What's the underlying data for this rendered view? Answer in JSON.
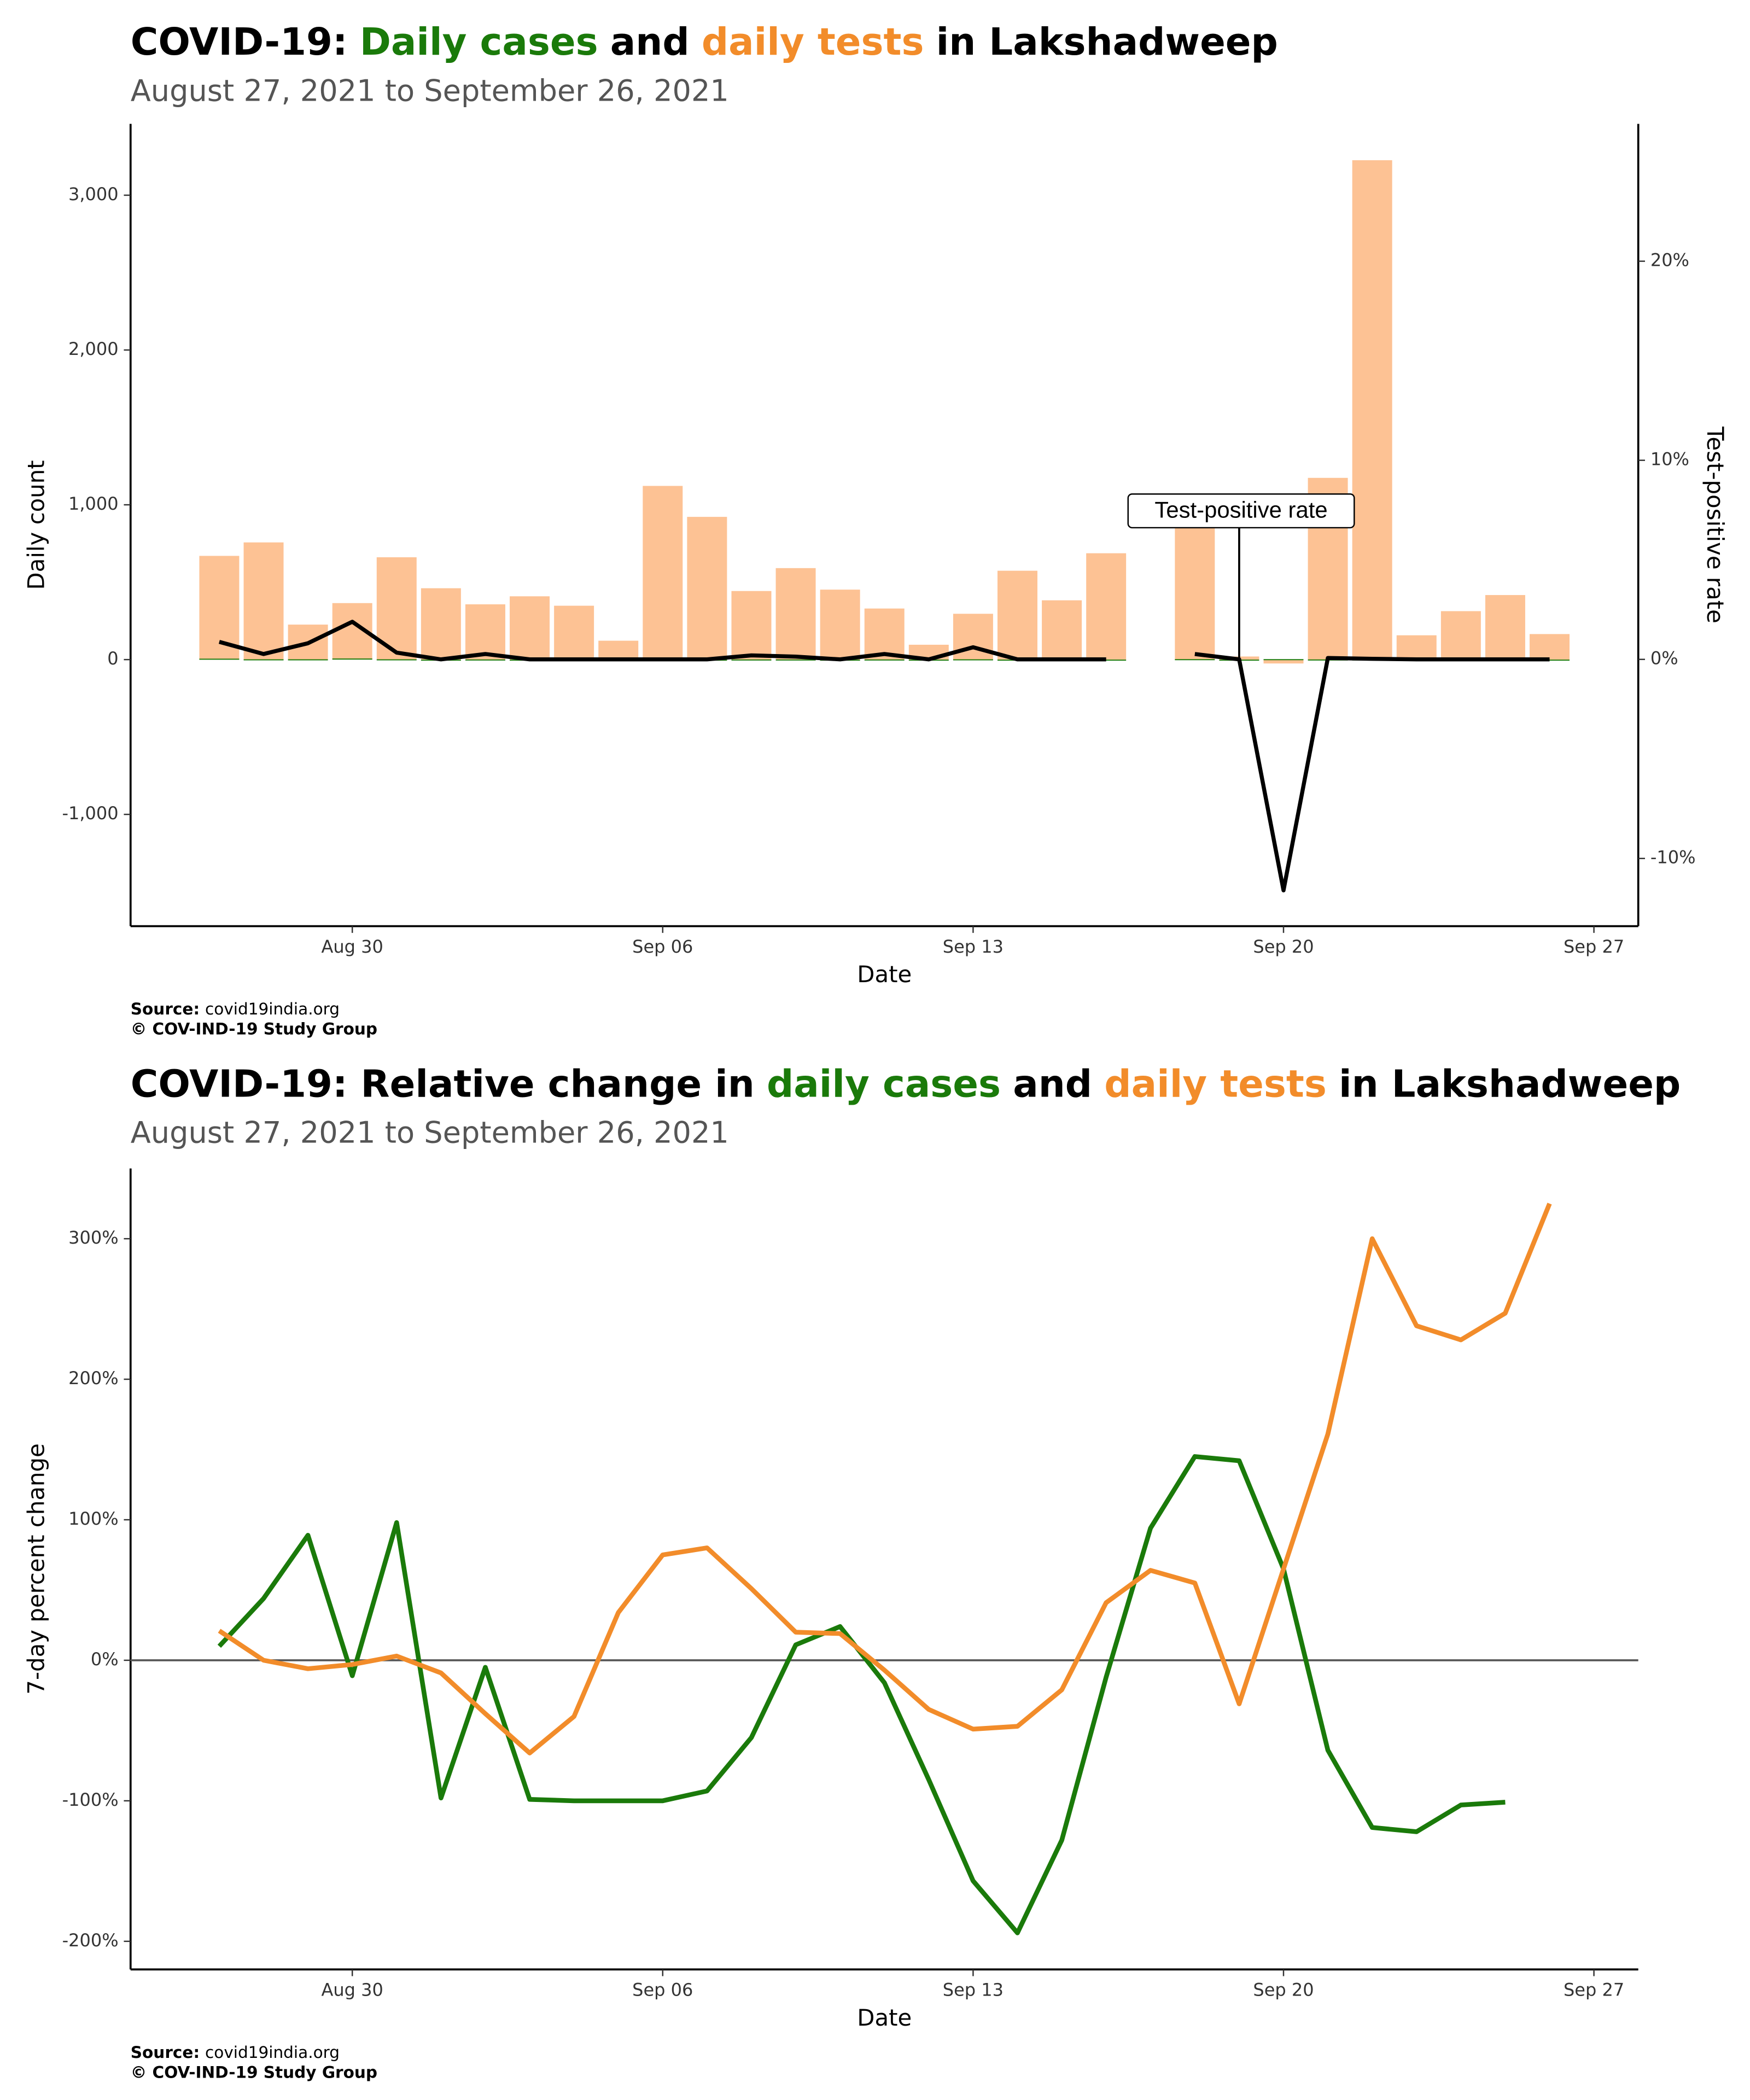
{
  "chart_data": [
    {
      "type": "bar",
      "title": [
        "COVID-19:",
        "Daily cases",
        "and",
        "daily tests",
        "in Lakshadweep"
      ],
      "title_colors": [
        "#000000",
        "#1a7a0a",
        "#000000",
        "#f28c2a",
        "#000000"
      ],
      "subtitle": "August 27, 2021 to September 26, 2021",
      "x_label": "Date",
      "y_label": "Daily count",
      "y2_label": "Test-positive rate",
      "annotation": "Test-positive rate",
      "source_label": "Source:",
      "source": "covid19india.org",
      "credit": "© COV-IND-19 Study Group",
      "x": [
        "Aug 27",
        "Aug 28",
        "Aug 29",
        "Aug 30",
        "Aug 31",
        "Sep 01",
        "Sep 02",
        "Sep 03",
        "Sep 04",
        "Sep 05",
        "Sep 06",
        "Sep 07",
        "Sep 08",
        "Sep 09",
        "Sep 10",
        "Sep 11",
        "Sep 12",
        "Sep 13",
        "Sep 14",
        "Sep 15",
        "Sep 16",
        "Sep 17",
        "Sep 18",
        "Sep 19",
        "Sep 20",
        "Sep 21",
        "Sep 22",
        "Sep 23",
        "Sep 24",
        "Sep 25",
        "Sep 26"
      ],
      "xlim": [
        "Aug 25",
        "Sep 28"
      ],
      "xticks": [
        "Aug 30",
        "Sep 06",
        "Sep 13",
        "Sep 20",
        "Sep 27"
      ],
      "ylim": [
        -1722,
        3461
      ],
      "yticks": [
        {
          "value": -1000,
          "label": "-1,000"
        },
        0,
        {
          "value": 1000,
          "label": "1,000"
        },
        {
          "value": 2000,
          "label": "2,000"
        },
        {
          "value": 3000,
          "label": "3,000"
        }
      ],
      "y2lim": [
        -13.4,
        26.9
      ],
      "y2ticks": [
        {
          "value": -10,
          "label": "-10%"
        },
        {
          "value": 0,
          "label": "0%"
        },
        {
          "value": 10,
          "label": "10%"
        },
        {
          "value": 20,
          "label": "20%"
        }
      ],
      "series": [
        {
          "type": "bar",
          "color": "#fdc294",
          "values": [
            670,
            757,
            226,
            365,
            661,
            461,
            357,
            409,
            348,
            122,
            1122,
            922,
            443,
            591,
            452,
            330,
            96,
            296,
            574,
            383,
            687,
            null,
            1000,
            20,
            -25,
            1174,
            3226,
            157,
            313,
            417,
            165
          ]
        },
        {
          "type": "bar",
          "color": "#1a7a0a",
          "values": [
            6,
            2,
            2,
            7,
            2,
            0,
            1,
            0,
            0,
            0,
            0,
            0,
            1,
            1,
            0,
            1,
            0,
            2,
            0,
            0,
            0,
            null,
            3,
            0,
            3,
            1,
            1,
            0,
            0,
            0,
            0
          ]
        },
        {
          "type": "line",
          "axis": "y2",
          "color": "#000000",
          "values": [
            0.88,
            0.27,
            0.81,
            1.89,
            0.34,
            0,
            0.27,
            0,
            0,
            0,
            0,
            0,
            0.2,
            0.14,
            0,
            0.27,
            0,
            0.61,
            0,
            0,
            0,
            null,
            0.27,
            0,
            -11.6,
            0.07,
            0.03,
            0,
            0,
            0,
            0
          ]
        }
      ]
    },
    {
      "type": "line",
      "title": [
        "COVID-19: Relative change in",
        "daily cases",
        "and",
        "daily tests",
        "in Lakshadweep"
      ],
      "title_colors": [
        "#000000",
        "#1a7a0a",
        "#000000",
        "#f28c2a",
        "#000000"
      ],
      "subtitle": "August 27, 2021 to September 26, 2021",
      "x_label": "Date",
      "y_label": "7-day percent change",
      "source_label": "Source:",
      "source": "covid19india.org",
      "credit": "© COV-IND-19 Study Group",
      "x": [
        "Aug 27",
        "Aug 28",
        "Aug 29",
        "Aug 30",
        "Aug 31",
        "Sep 01",
        "Sep 02",
        "Sep 03",
        "Sep 04",
        "Sep 05",
        "Sep 06",
        "Sep 07",
        "Sep 08",
        "Sep 09",
        "Sep 10",
        "Sep 11",
        "Sep 12",
        "Sep 13",
        "Sep 14",
        "Sep 15",
        "Sep 16",
        "Sep 17",
        "Sep 18",
        "Sep 19",
        "Sep 20",
        "Sep 21",
        "Sep 22",
        "Sep 23",
        "Sep 24",
        "Sep 25",
        "Sep 26"
      ],
      "xlim": [
        "Aug 25",
        "Sep 28"
      ],
      "xticks": [
        "Aug 30",
        "Sep 06",
        "Sep 13",
        "Sep 20",
        "Sep 27"
      ],
      "ylim": [
        -220,
        350
      ],
      "yticks": [
        {
          "value": -200,
          "label": "-200%"
        },
        {
          "value": -100,
          "label": "-100%"
        },
        {
          "value": 0,
          "label": "0%"
        },
        {
          "value": 100,
          "label": "100%"
        },
        {
          "value": 200,
          "label": "200%"
        },
        {
          "value": 300,
          "label": "300%"
        }
      ],
      "hline": 0,
      "series": [
        {
          "color": "#1a7a0a",
          "values": [
            10,
            44,
            89,
            -11,
            98,
            -98,
            -5,
            -99,
            -100,
            -100,
            -100,
            -93,
            -55,
            11,
            24,
            -16,
            -85,
            -157,
            -194,
            -128,
            -12,
            94,
            145,
            142,
            65,
            -64,
            -119,
            -122,
            -103,
            -101,
            null
          ]
        },
        {
          "color": "#f28c2a",
          "values": [
            21,
            0,
            -6,
            -3,
            3,
            -9,
            -38,
            -66,
            -40,
            34,
            75,
            80,
            51,
            20,
            19,
            -7,
            -35,
            -49,
            -47,
            -21,
            41,
            64,
            55,
            -31,
            65,
            161,
            300,
            238,
            228,
            247,
            325
          ]
        }
      ]
    }
  ]
}
